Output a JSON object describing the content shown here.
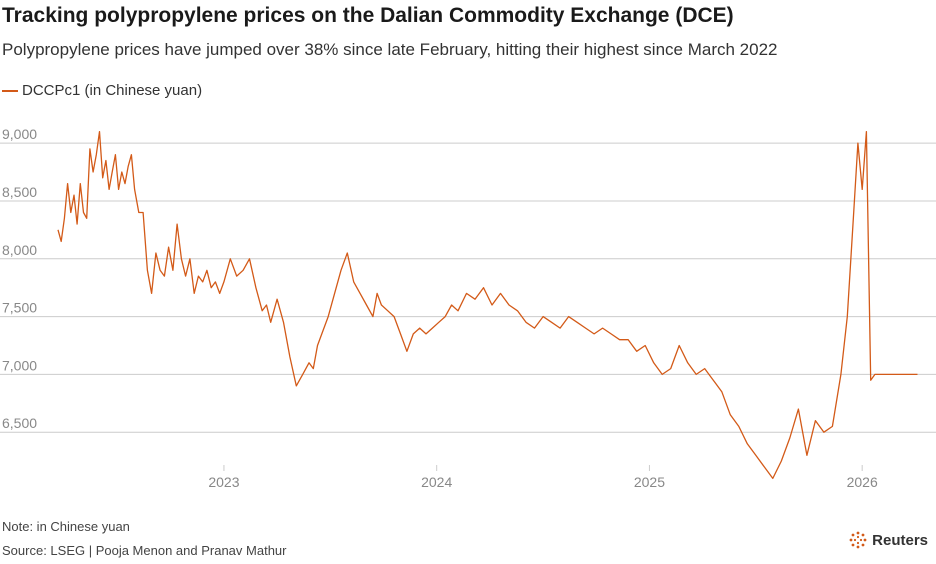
{
  "title": "Tracking polypropylene prices on the Dalian Commodity Exchange (DCE)",
  "subtitle": "Polypropylene prices have jumped over 38% since late February, hitting their highest since March 2022",
  "note": "Note: in Chinese yuan",
  "source": "Source: LSEG | Pooja Menon and Pranav Mathur",
  "brand": "Reuters",
  "colors": {
    "line": "#d35a18",
    "grid": "#cccccc",
    "axis_text": "#888888"
  },
  "chart_data": {
    "type": "line",
    "title": "Tracking polypropylene prices on the Dalian Commodity Exchange (DCE)",
    "xlabel": "",
    "ylabel": "",
    "x_unit": "decimal year",
    "xlim": [
      2022.22,
      2026.3
    ],
    "ylim": [
      6000,
      9200
    ],
    "y_ticks": [
      6500,
      7000,
      7500,
      8000,
      8500,
      9000
    ],
    "y_tick_labels": [
      "6,500",
      "7,000",
      "7,500",
      "8,000",
      "8,500",
      "9,000"
    ],
    "x_ticks": [
      2023,
      2024,
      2025,
      2026
    ],
    "x_tick_labels": [
      "2023",
      "2024",
      "2025",
      "2026"
    ],
    "legend": "top-left",
    "series": [
      {
        "name": "DCCPc1 (in Chinese yuan)",
        "x": [
          2022.22,
          2022.235,
          2022.25,
          2022.265,
          2022.28,
          2022.295,
          2022.31,
          2022.325,
          2022.34,
          2022.355,
          2022.37,
          2022.385,
          2022.4,
          2022.415,
          2022.43,
          2022.445,
          2022.46,
          2022.475,
          2022.49,
          2022.505,
          2022.52,
          2022.535,
          2022.55,
          2022.565,
          2022.58,
          2022.6,
          2022.62,
          2022.64,
          2022.66,
          2022.68,
          2022.7,
          2022.72,
          2022.74,
          2022.76,
          2022.78,
          2022.8,
          2022.82,
          2022.84,
          2022.86,
          2022.88,
          2022.9,
          2022.92,
          2022.94,
          2022.96,
          2022.98,
          2023.0,
          2023.03,
          2023.06,
          2023.09,
          2023.12,
          2023.15,
          2023.18,
          2023.2,
          2023.22,
          2023.25,
          2023.28,
          2023.31,
          2023.34,
          2023.37,
          2023.4,
          2023.42,
          2023.44,
          2023.46,
          2023.49,
          2023.52,
          2023.55,
          2023.58,
          2023.61,
          2023.64,
          2023.67,
          2023.7,
          2023.72,
          2023.74,
          2023.77,
          2023.8,
          2023.83,
          2023.86,
          2023.89,
          2023.92,
          2023.95,
          2023.98,
          2024.01,
          2024.04,
          2024.07,
          2024.1,
          2024.14,
          2024.18,
          2024.22,
          2024.26,
          2024.3,
          2024.34,
          2024.38,
          2024.42,
          2024.46,
          2024.5,
          2024.54,
          2024.58,
          2024.62,
          2024.66,
          2024.7,
          2024.74,
          2024.78,
          2024.82,
          2024.86,
          2024.9,
          2024.94,
          2024.98,
          2025.02,
          2025.06,
          2025.1,
          2025.14,
          2025.18,
          2025.22,
          2025.26,
          2025.3,
          2025.34,
          2025.38,
          2025.42,
          2025.46,
          2025.5,
          2025.54,
          2025.58,
          2025.62,
          2025.66,
          2025.7,
          2025.74,
          2025.78,
          2025.82,
          2025.86,
          2025.9,
          2025.93,
          2025.96,
          2025.98,
          2026.0,
          2026.02,
          2026.04,
          2026.06,
          2026.08,
          2026.1,
          2026.12,
          2026.14,
          2026.16,
          2026.18,
          2026.19,
          2026.2,
          2026.21,
          2026.22,
          2026.23,
          2026.24,
          2026.25,
          2026.26
        ],
        "y": [
          8250,
          8150,
          8350,
          8650,
          8400,
          8550,
          8300,
          8650,
          8400,
          8350,
          8950,
          8750,
          8900,
          9100,
          8700,
          8850,
          8600,
          8750,
          8900,
          8600,
          8750,
          8650,
          8800,
          8900,
          8600,
          8400,
          8400,
          7900,
          7700,
          8050,
          7900,
          7850,
          8100,
          7900,
          8300,
          8000,
          7850,
          8000,
          7700,
          7850,
          7800,
          7900,
          7750,
          7800,
          7700,
          7800,
          8000,
          7850,
          7900,
          8000,
          7750,
          7550,
          7600,
          7450,
          7650,
          7450,
          7150,
          6900,
          7000,
          7100,
          7050,
          7250,
          7350,
          7500,
          7700,
          7900,
          8050,
          7800,
          7700,
          7600,
          7500,
          7700,
          7600,
          7550,
          7500,
          7350,
          7200,
          7350,
          7400,
          7350,
          7400,
          7450,
          7500,
          7600,
          7550,
          7700,
          7650,
          7750,
          7600,
          7700,
          7600,
          7550,
          7450,
          7400,
          7500,
          7450,
          7400,
          7500,
          7450,
          7400,
          7350,
          7400,
          7350,
          7300,
          7300,
          7200,
          7250,
          7100,
          7000,
          7050,
          7250,
          7100,
          7000,
          7050,
          6950,
          6850,
          6650,
          6550,
          6400,
          6300,
          6200,
          6100,
          6250,
          6450,
          6700,
          6300,
          6600,
          6500,
          6550,
          7000,
          7500,
          8400,
          9000,
          8600,
          9100,
          6950,
          7000,
          7000,
          7000,
          7000,
          7000,
          7000,
          7000,
          7000,
          7000,
          7000,
          7000,
          7000,
          7000,
          7000,
          7000
        ]
      }
    ]
  }
}
